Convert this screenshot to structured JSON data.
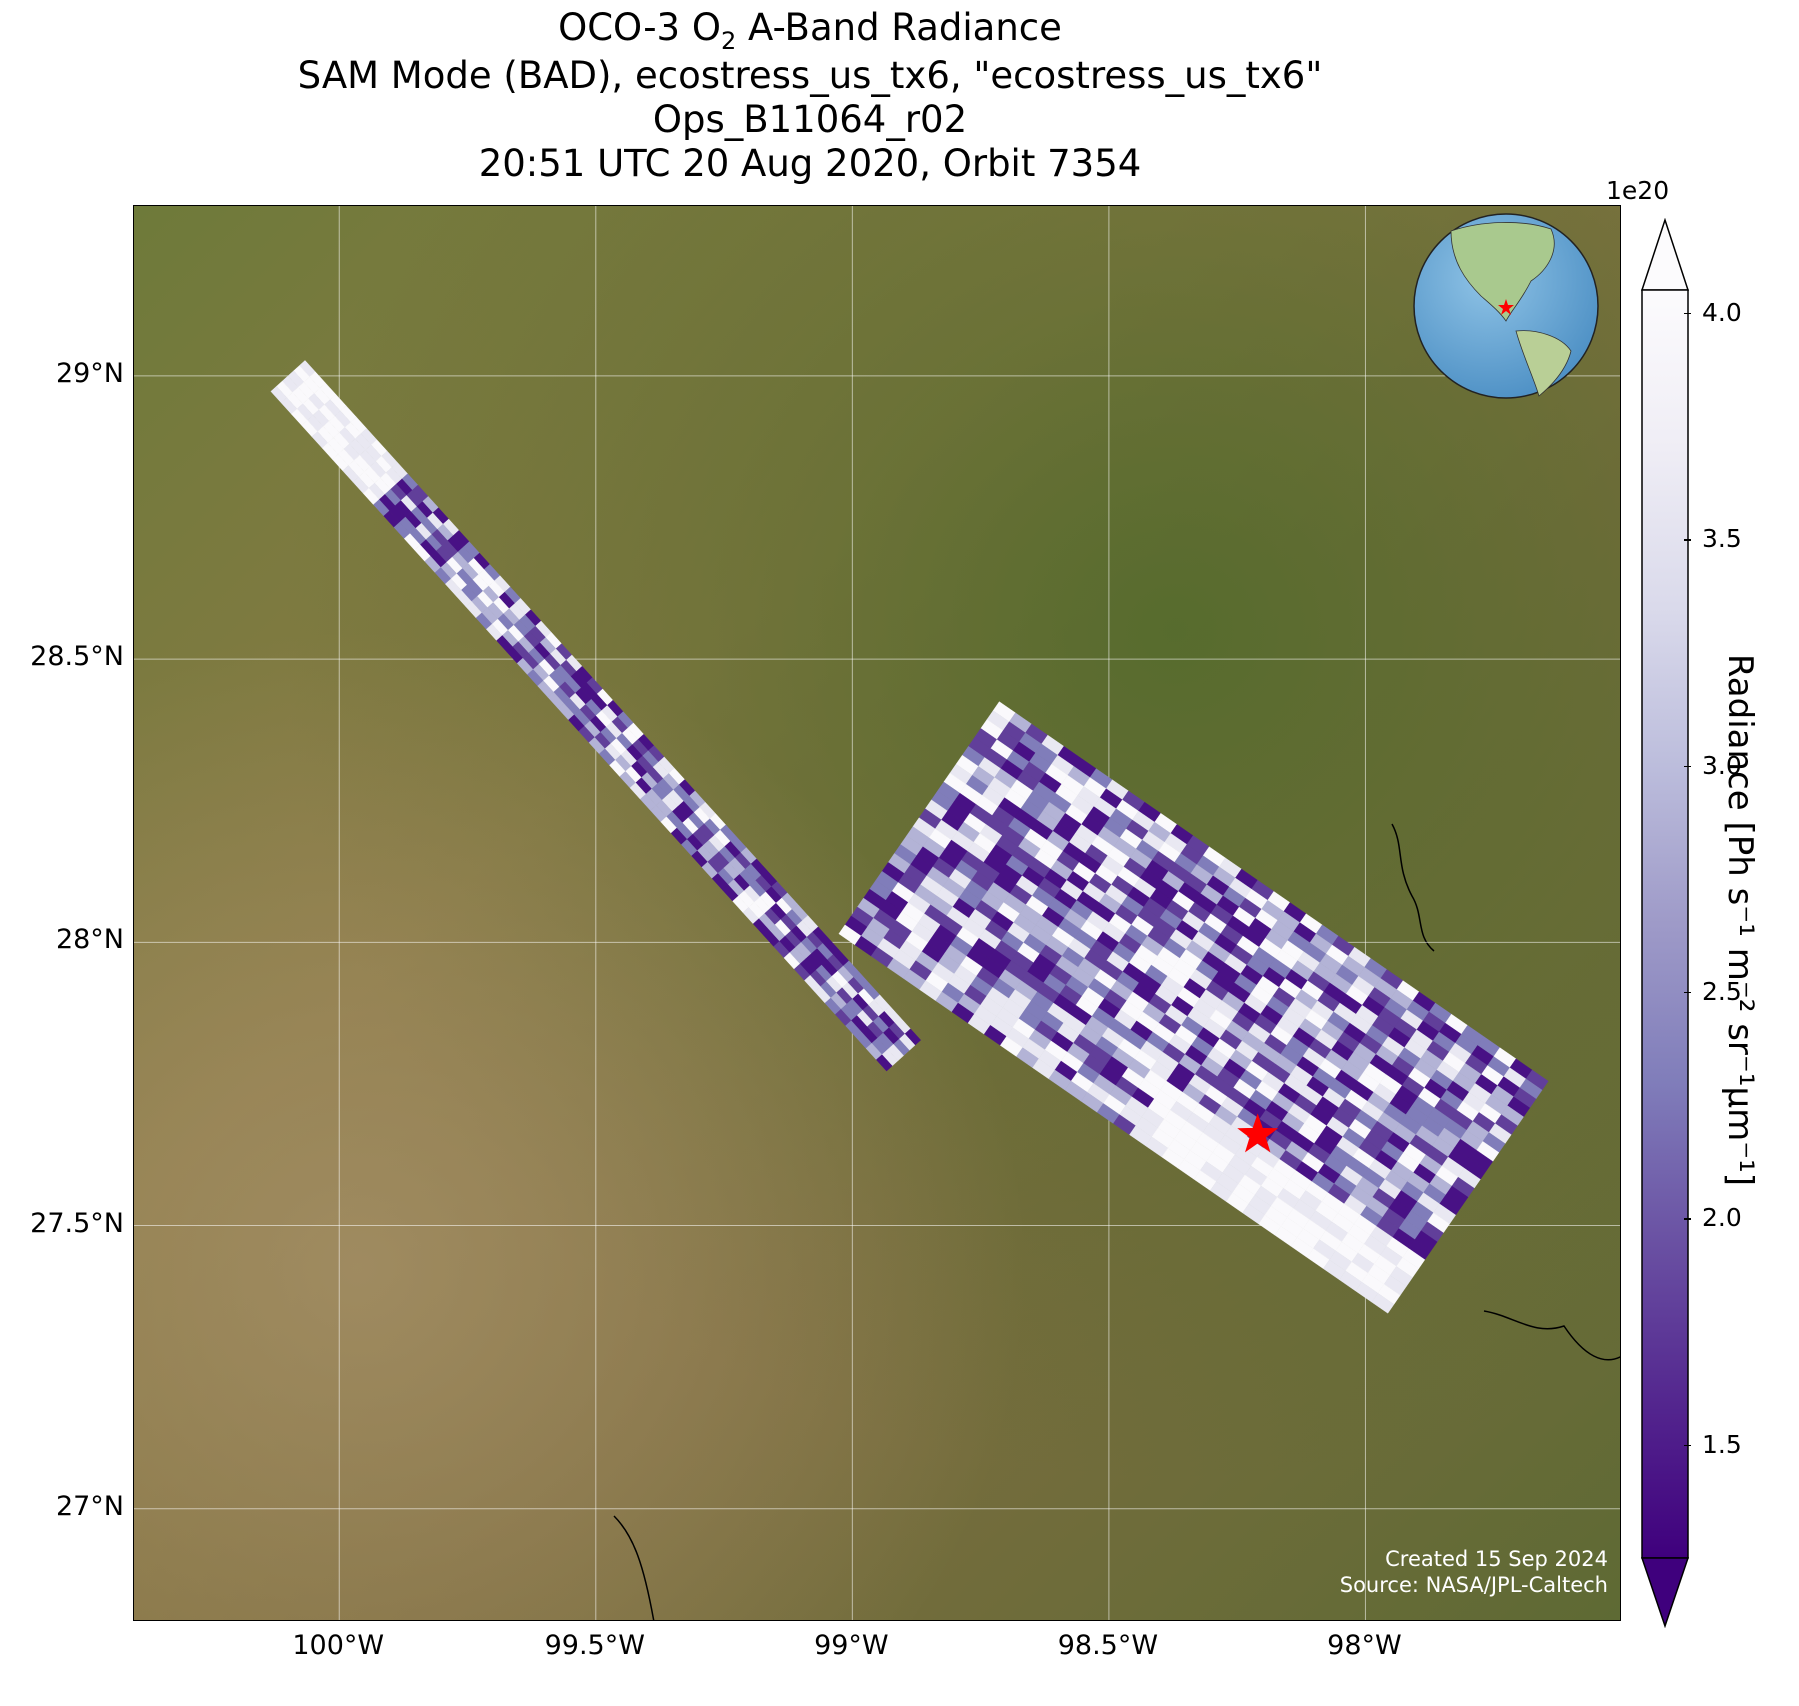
{
  "title": {
    "line1_prefix": "OCO-3 O",
    "line1_subscript": "2",
    "line1_suffix": " A-Band Radiance",
    "line2": "SAM Mode (BAD), ecostress_us_tx6, \"ecostress_us_tx6\"",
    "line3": "Ops_B11064_r02",
    "line4": "20:51 UTC 20 Aug 2020, Orbit 7354"
  },
  "axes": {
    "y_ticks": [
      "29°N",
      "28.5°N",
      "28°N",
      "27.5°N",
      "27°N"
    ],
    "x_ticks": [
      "100°W",
      "99.5°W",
      "99°W",
      "98.5°W",
      "98°W"
    ],
    "lat_values": [
      29.0,
      28.5,
      28.0,
      27.5,
      27.0
    ],
    "lon_values": [
      -100.0,
      -99.5,
      -99.0,
      -98.5,
      -98.0
    ],
    "lon_range": [
      -100.4,
      -97.5
    ],
    "lat_range": [
      26.8,
      29.3
    ],
    "grid": true
  },
  "colorbar": {
    "exponent_label": "1e20",
    "label": "Radiance [Ph s⁻¹ m⁻² sr⁻¹μm⁻¹]",
    "ticks": [
      "1.5",
      "2.0",
      "2.5",
      "3.0",
      "3.5",
      "4.0"
    ],
    "tick_values": [
      1.5,
      2.0,
      2.5,
      3.0,
      3.5,
      4.0
    ],
    "range": [
      1.25,
      4.05
    ],
    "extend": "both",
    "cmap": "Purples_r",
    "colors": [
      "#3f007d",
      "#54278f",
      "#6a51a3",
      "#807dba",
      "#9e9ac8",
      "#bcbddc",
      "#dadaeb",
      "#efedf5",
      "#fcfbfd"
    ]
  },
  "target": {
    "marker": "red-star",
    "lon": -98.21,
    "lat": 27.66,
    "color": "#ff0000"
  },
  "credits": {
    "created": "Created 15 Sep 2024",
    "source": "Source: NASA/JPL-Caltech"
  },
  "chart_data": {
    "type": "heatmap",
    "title": "OCO-3 O2 A-Band Radiance",
    "xlabel": "",
    "ylabel": "",
    "xlim": [
      -100.4,
      -97.5
    ],
    "ylim": [
      26.8,
      29.3
    ],
    "value_range": [
      1.25,
      4.05
    ],
    "value_units": "Ph s-1 m-2 sr-1 μm-1 (×1e20)",
    "swaths": [
      {
        "name": "",
        "start": [
          -100.1,
          29.0
        ],
        "end": [
          -98.9,
          27.8
        ],
        "width_deg": 0.09
      },
      {
        "name": "",
        "start": [
          -98.87,
          28.22
        ],
        "end": [
          -97.8,
          27.55
        ],
        "width_deg": 0.55
      }
    ],
    "value_description_levels": [
      1.4,
      1.8,
      2.3,
      2.9,
      3.6,
      4.0
    ]
  }
}
